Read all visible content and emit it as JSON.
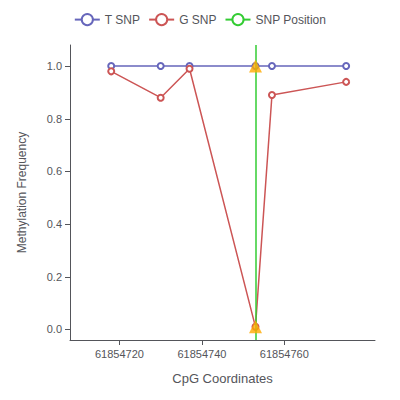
{
  "chart_data": {
    "type": "line",
    "xlabel": "CpG Coordinates",
    "ylabel": "Methylation Frequency",
    "xlim": [
      61854708,
      61854782
    ],
    "ylim": [
      -0.04,
      1.08
    ],
    "xticks": [
      61854720,
      61854740,
      61854760
    ],
    "yticks": [
      {
        "value": 0.0,
        "label": "0.0"
      },
      0.2,
      0.4,
      0.6,
      0.8,
      {
        "value": 1.0,
        "label": "1.0"
      }
    ],
    "grid": false,
    "legend": "top",
    "series": [
      {
        "name": "T SNP",
        "type": "line",
        "color": "#6666bb",
        "marker": "open_circle",
        "x": [
          61854718,
          61854730,
          61854737,
          61854753,
          61854757,
          61854775
        ],
        "values": [
          1.0,
          1.0,
          1.0,
          1.0,
          1.0,
          1.0
        ]
      },
      {
        "name": "G SNP",
        "type": "line",
        "color": "#cc5555",
        "marker": "open_circle",
        "x": [
          61854718,
          61854730,
          61854737,
          61854753,
          61854757,
          61854775
        ],
        "values": [
          0.98,
          0.88,
          0.99,
          0.01,
          0.89,
          0.94
        ]
      },
      {
        "name": "SNP Position",
        "type": "vline",
        "color": "#33cc33",
        "x": 61854753
      },
      {
        "type": "scatter",
        "color": "#ffaa00",
        "marker": "triangle",
        "x": [
          61854753,
          61854753
        ],
        "values": [
          1.0,
          0.01
        ]
      }
    ]
  }
}
